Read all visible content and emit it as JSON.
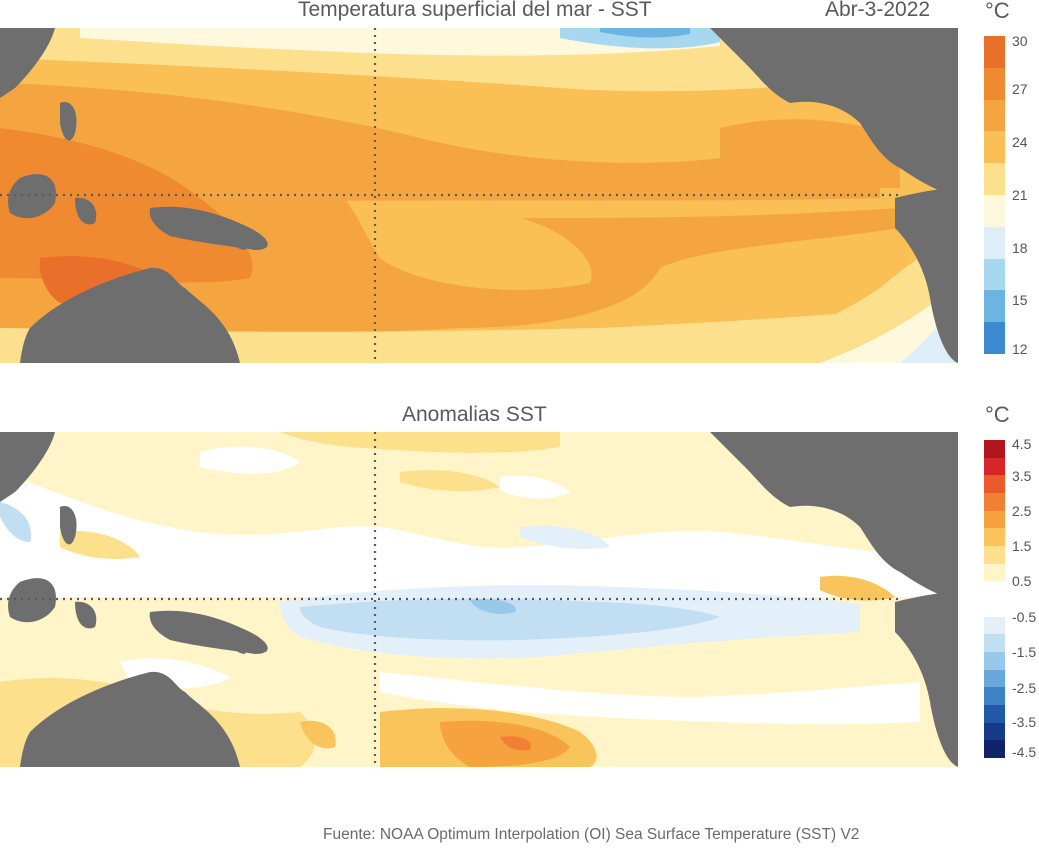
{
  "top_panel": {
    "title": "Temperatura superficial del mar - SST",
    "date": "Abr-3-2022",
    "unit": "°C",
    "colorbar": {
      "ticks": [
        "30",
        "27",
        "24",
        "21",
        "18",
        "15",
        "12"
      ],
      "colors": [
        "#e8702a",
        "#f08a30",
        "#f5a540",
        "#fabf55",
        "#fce08e",
        "#fef8dc",
        "#ddeef8",
        "#a8d8f0",
        "#6cb5e3",
        "#3b8ad0"
      ]
    }
  },
  "bottom_panel": {
    "title": "Anomalias SST",
    "unit": "°C",
    "colorbar": {
      "ticks": [
        "4.5",
        "3.5",
        "2.5",
        "1.5",
        "0.5",
        "-0.5",
        "-1.5",
        "-2.5",
        "-3.5",
        "-4.5"
      ],
      "colors": [
        "#b0141c",
        "#d6262a",
        "#ea5a2c",
        "#f18035",
        "#f6a23e",
        "#f9c45c",
        "#fde08c",
        "#fff5c8",
        "#ffffff",
        "#ffffff",
        "#e3f0fa",
        "#c2def3",
        "#98c8ea",
        "#6aa8dc",
        "#3e82c6",
        "#2258a8",
        "#163a88",
        "#10236a"
      ]
    }
  },
  "source": "Fuente: NOAA Optimum Interpolation (OI) Sea Surface Temperature (SST) V2",
  "colors": {
    "land": "#6e6e6e",
    "grid": "#5a5a5a"
  }
}
